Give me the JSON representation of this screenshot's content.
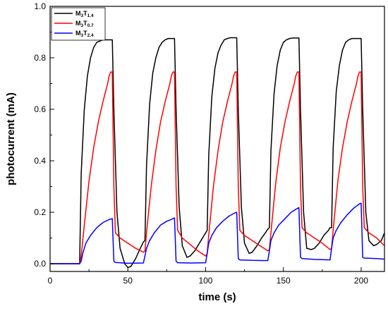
{
  "chart_data": {
    "type": "line",
    "title": "",
    "xlabel": "time (s)",
    "ylabel": "photocurrent (mA)",
    "xlim": [
      0,
      215
    ],
    "ylim": [
      -0.03,
      1.0
    ],
    "x_ticks": [
      0,
      50,
      100,
      150,
      200
    ],
    "x_tick_labels": [
      "0",
      "50",
      "100",
      "150",
      "200"
    ],
    "y_ticks": [
      0.0,
      0.2,
      0.4,
      0.6,
      0.8,
      1.0
    ],
    "y_tick_labels": [
      "0.0",
      "0.2",
      "0.4",
      "0.6",
      "0.8",
      "1.0"
    ],
    "grid": false,
    "legend_position": "top-left",
    "series": [
      {
        "name": "M3T1.4",
        "label_main": "M",
        "label_sub1": "3",
        "label_mid": "T",
        "label_sub2": "1.4",
        "color": "#000000",
        "x": [
          0,
          19,
          20,
          22,
          24,
          26,
          28,
          30,
          32,
          34,
          36,
          38,
          40,
          41,
          43,
          45,
          48,
          50,
          52,
          55,
          58,
          60,
          61,
          62,
          64,
          66,
          68,
          70,
          72,
          74,
          76,
          78,
          80,
          81,
          83,
          85,
          88,
          90,
          93,
          96,
          99,
          100,
          101,
          102,
          104,
          106,
          108,
          110,
          112,
          114,
          116,
          118,
          120,
          121,
          123,
          125,
          128,
          130,
          133,
          136,
          139,
          140,
          141,
          142,
          144,
          146,
          148,
          150,
          152,
          154,
          156,
          158,
          160,
          161,
          163,
          165,
          168,
          170,
          173,
          176,
          179,
          180,
          181,
          182,
          184,
          186,
          188,
          190,
          192,
          194,
          196,
          198,
          200,
          201,
          203,
          205,
          208,
          210,
          213,
          215
        ],
        "values": [
          0.0,
          0.0,
          0.35,
          0.6,
          0.73,
          0.8,
          0.84,
          0.86,
          0.865,
          0.87,
          0.87,
          0.87,
          0.87,
          0.6,
          0.2,
          0.06,
          0.0,
          -0.015,
          -0.01,
          0.02,
          0.06,
          0.085,
          0.09,
          0.38,
          0.62,
          0.74,
          0.8,
          0.84,
          0.86,
          0.87,
          0.875,
          0.875,
          0.875,
          0.6,
          0.22,
          0.07,
          0.025,
          0.03,
          0.05,
          0.08,
          0.11,
          0.12,
          0.13,
          0.42,
          0.65,
          0.76,
          0.82,
          0.85,
          0.87,
          0.875,
          0.878,
          0.878,
          0.878,
          0.6,
          0.22,
          0.08,
          0.04,
          0.045,
          0.07,
          0.1,
          0.125,
          0.135,
          0.14,
          0.44,
          0.66,
          0.77,
          0.83,
          0.86,
          0.87,
          0.875,
          0.877,
          0.877,
          0.877,
          0.6,
          0.2,
          0.06,
          0.055,
          0.06,
          0.08,
          0.11,
          0.13,
          0.14,
          0.14,
          0.45,
          0.67,
          0.77,
          0.83,
          0.86,
          0.87,
          0.875,
          0.875,
          0.875,
          0.875,
          0.6,
          0.2,
          0.09,
          0.07,
          0.075,
          0.09,
          0.12
        ]
      },
      {
        "name": "M3T0.7",
        "label_main": "M",
        "label_sub1": "3",
        "label_mid": "T",
        "label_sub2": "0.7",
        "color": "#ff0000",
        "x": [
          0,
          19,
          20,
          22,
          25,
          28,
          31,
          34,
          37,
          38,
          39,
          40,
          41,
          42,
          45,
          50,
          55,
          60,
          61,
          62,
          65,
          68,
          71,
          74,
          77,
          78,
          79,
          80,
          81,
          82,
          85,
          90,
          95,
          100,
          101,
          102,
          105,
          108,
          111,
          114,
          117,
          118,
          119,
          120,
          121,
          122,
          125,
          130,
          135,
          140,
          141,
          142,
          145,
          148,
          151,
          154,
          157,
          158,
          159,
          160,
          161,
          162,
          165,
          170,
          175,
          180,
          181,
          182,
          185,
          188,
          191,
          194,
          197,
          198,
          199,
          200,
          201,
          202,
          205,
          210,
          215
        ],
        "values": [
          0.0,
          0.0,
          0.03,
          0.15,
          0.32,
          0.45,
          0.55,
          0.63,
          0.7,
          0.73,
          0.745,
          0.745,
          0.3,
          0.12,
          0.1,
          0.08,
          0.06,
          0.045,
          0.05,
          0.12,
          0.3,
          0.44,
          0.55,
          0.63,
          0.7,
          0.73,
          0.745,
          0.745,
          0.3,
          0.13,
          0.1,
          0.075,
          0.05,
          0.03,
          0.04,
          0.11,
          0.3,
          0.44,
          0.55,
          0.63,
          0.7,
          0.73,
          0.745,
          0.745,
          0.3,
          0.13,
          0.11,
          0.09,
          0.07,
          0.05,
          0.055,
          0.12,
          0.31,
          0.45,
          0.55,
          0.63,
          0.7,
          0.73,
          0.745,
          0.745,
          0.3,
          0.14,
          0.12,
          0.1,
          0.08,
          0.055,
          0.06,
          0.13,
          0.32,
          0.45,
          0.55,
          0.63,
          0.7,
          0.73,
          0.745,
          0.745,
          0.3,
          0.14,
          0.12,
          0.1,
          0.07
        ]
      },
      {
        "name": "M3T2.4",
        "label_main": "M",
        "label_sub1": "3",
        "label_mid": "T",
        "label_sub2": "2.4",
        "color": "#0000ff",
        "x": [
          0,
          19,
          20,
          21,
          23,
          26,
          30,
          34,
          38,
          40,
          41,
          42,
          50,
          60,
          61,
          62,
          64,
          67,
          71,
          75,
          79,
          80,
          81,
          82,
          90,
          100,
          101,
          102,
          104,
          107,
          111,
          115,
          119,
          120,
          121,
          122,
          130,
          140,
          141,
          142,
          144,
          147,
          151,
          155,
          159,
          160,
          161,
          162,
          170,
          180,
          181,
          182,
          184,
          187,
          191,
          195,
          199,
          200,
          201,
          202,
          210,
          215
        ],
        "values": [
          0.0,
          0.0,
          0.01,
          0.04,
          0.08,
          0.11,
          0.14,
          0.16,
          0.172,
          0.175,
          0.01,
          0.005,
          0.002,
          0.003,
          0.03,
          0.06,
          0.09,
          0.12,
          0.15,
          0.165,
          0.175,
          0.178,
          0.01,
          0.004,
          0.003,
          0.004,
          0.04,
          0.08,
          0.11,
          0.14,
          0.165,
          0.185,
          0.198,
          0.2,
          0.02,
          0.015,
          0.013,
          0.012,
          0.05,
          0.09,
          0.12,
          0.15,
          0.175,
          0.2,
          0.215,
          0.218,
          0.025,
          0.02,
          0.017,
          0.015,
          0.06,
          0.1,
          0.13,
          0.16,
          0.19,
          0.215,
          0.233,
          0.235,
          0.025,
          0.022,
          0.02,
          0.018
        ]
      }
    ]
  }
}
